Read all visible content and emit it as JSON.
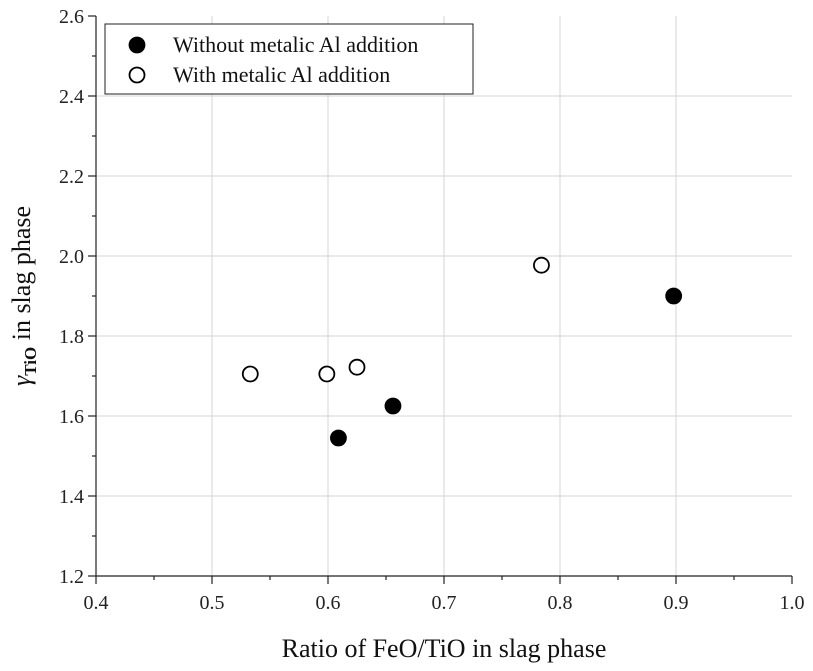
{
  "chart_data": {
    "type": "scatter",
    "xlabel": "Ratio of FeO/TiO in slag phase",
    "ylabel_symbol": "γ",
    "ylabel_subscript": "TiO",
    "ylabel_suffix": " in slag phase",
    "xlim": [
      0.4,
      1.0
    ],
    "ylim": [
      1.2,
      2.6
    ],
    "x_ticks": [
      0.4,
      0.5,
      0.6,
      0.7,
      0.8,
      0.9,
      1.0
    ],
    "y_ticks": [
      1.2,
      1.4,
      1.6,
      1.8,
      2.0,
      2.2,
      2.4,
      2.6
    ],
    "x_tick_labels": [
      "0.4",
      "0.5",
      "0.6",
      "0.7",
      "0.8",
      "0.9",
      "1.0"
    ],
    "y_tick_labels": [
      "1.2",
      "1.4",
      "1.6",
      "1.8",
      "2.0",
      "2.2",
      "2.4",
      "2.6"
    ],
    "grid": true,
    "legend_position": "top-left",
    "series": [
      {
        "name": "Without metalic Al addition",
        "marker": "filled-circle",
        "color": "#000000",
        "points": [
          [
            0.609,
            1.545
          ],
          [
            0.656,
            1.625
          ],
          [
            0.898,
            1.9
          ]
        ]
      },
      {
        "name": "With metalic Al addition",
        "marker": "open-circle",
        "color": "#000000",
        "points": [
          [
            0.533,
            1.705
          ],
          [
            0.599,
            1.705
          ],
          [
            0.625,
            1.722
          ],
          [
            0.784,
            1.977
          ]
        ]
      }
    ]
  }
}
